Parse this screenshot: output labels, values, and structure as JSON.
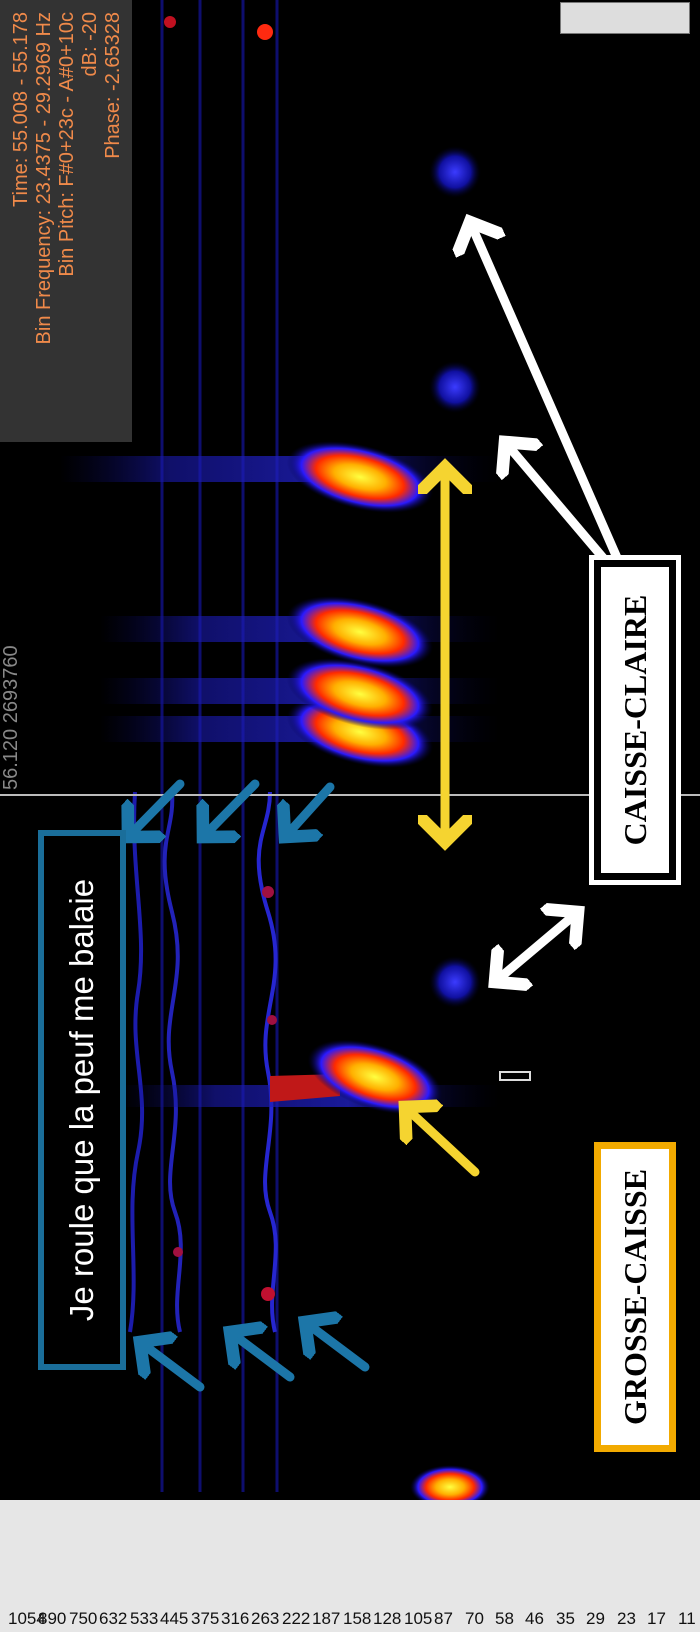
{
  "info_panel": {
    "time": "Time: 55.008 - 55.178",
    "bin_frequency": "Bin Frequency: 23.4375 - 29.2969 Hz",
    "bin_pitch": "Bin Pitch: F#0+23c - A#0+10c",
    "db": "dB: -20",
    "phase": "Phase: -2.65328"
  },
  "playhead": {
    "label": "56.120  2693760"
  },
  "lyric": "Je roule que la peuf me balaie",
  "labels": {
    "grosse_caisse": "GROSSE-CAISSE",
    "caisse_claire": "CAISSE-CLAIRE"
  },
  "chart_data": {
    "type": "heatmap",
    "title": "",
    "xlabel": "",
    "ylabel": "",
    "y_axis_labels": [
      "1054",
      "890",
      "750",
      "632",
      "533",
      "445",
      "375",
      "316",
      "263",
      "222",
      "187",
      "158",
      "128",
      "105",
      "87",
      "70",
      "58",
      "46",
      "35",
      "29",
      "23",
      "17",
      "11"
    ],
    "y_unit": "Hz",
    "colormap": [
      "#000000",
      "#000080",
      "#2020ff",
      "#c00020",
      "#ff3000",
      "#ffa000",
      "#ffff40"
    ],
    "note": "",
    "events": [
      {
        "name": "kick",
        "time_index": 1
      },
      {
        "name": "snare",
        "time_index": 2
      },
      {
        "name": "snare",
        "time_index": 3
      },
      {
        "name": "snare",
        "time_index": 4
      },
      {
        "name": "snare",
        "time_index": 5
      }
    ]
  },
  "colors": {
    "blue_arrow": "#1c76a8",
    "yellow_arrow": "#f5d430",
    "white_arrow": "#ffffff",
    "orange_box": "#f2aa00",
    "lyric_box": "#1a6e9a",
    "info_text": "#f08a4a"
  }
}
